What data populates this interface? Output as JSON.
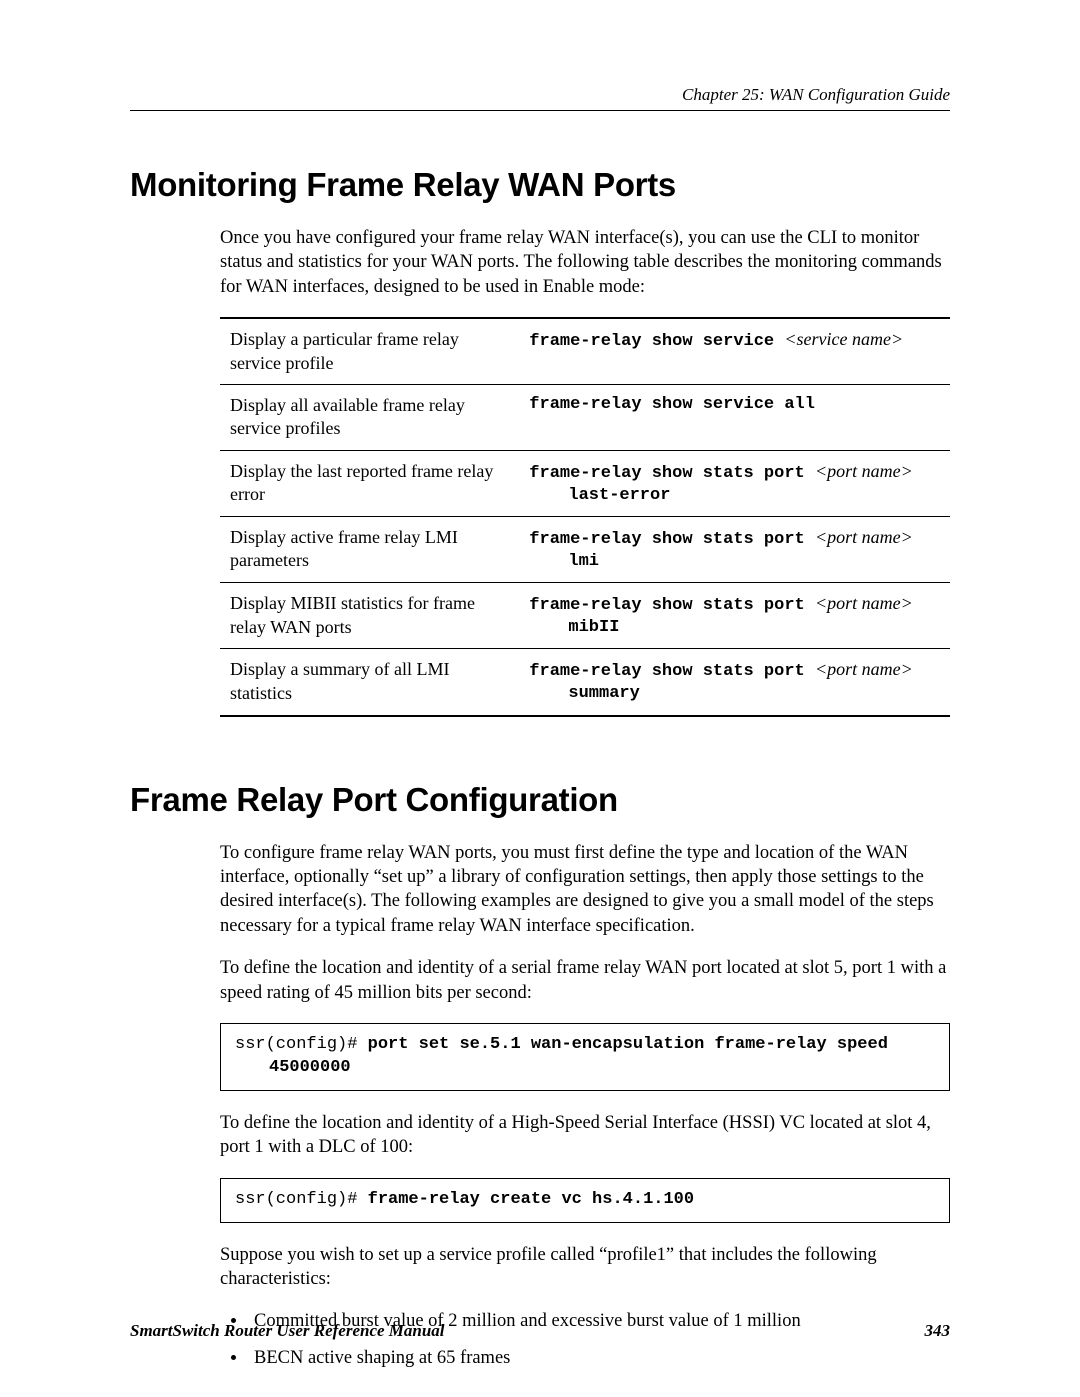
{
  "header": {
    "chapter_label": "Chapter 25: WAN Configuration Guide"
  },
  "section1": {
    "heading": "Monitoring Frame Relay WAN Ports",
    "intro": "Once you have configured your frame relay WAN interface(s), you can use the CLI to monitor status and statistics for your WAN ports. The following table describes the monitoring commands for WAN interfaces, designed to be used in Enable mode:",
    "table": {
      "rows": [
        {
          "desc": "Display a particular frame relay service profile",
          "cmd_prefix": "frame-relay show service ",
          "param": "<service name>",
          "line2": ""
        },
        {
          "desc": "Display all available frame relay service profiles",
          "cmd_prefix": "frame-relay show service all",
          "param": "",
          "line2": ""
        },
        {
          "desc": "Display the last reported frame relay error",
          "cmd_prefix": "frame-relay show stats port ",
          "param": "<port name>",
          "line2": "last-error"
        },
        {
          "desc": "Display active frame relay LMI parameters",
          "cmd_prefix": "frame-relay show stats port ",
          "param": "<port name>",
          "line2": "lmi"
        },
        {
          "desc": "Display MIBII statistics for frame relay WAN ports",
          "cmd_prefix": "frame-relay show stats port ",
          "param": "<port name>",
          "line2": "mibII"
        },
        {
          "desc": "Display a summary of all LMI statistics",
          "cmd_prefix": "frame-relay show stats port ",
          "param": "<port name>",
          "line2": "summary"
        }
      ]
    }
  },
  "section2": {
    "heading": "Frame Relay Port Configuration",
    "para1": "To configure frame relay WAN ports, you must first define the type and location of the WAN interface, optionally “set up” a library of configuration settings, then apply those settings to the desired interface(s). The following examples are designed to give you a small model of the steps necessary for a typical frame relay WAN interface specification.",
    "para2": "To define the location and identity of a serial frame relay WAN port located at slot 5, port 1 with a speed rating of 45 million bits per second:",
    "code1": {
      "prompt": "ssr(config)# ",
      "cmd_line1": "port set se.5.1 wan-encapsulation frame-relay speed",
      "cmd_line2": "45000000"
    },
    "para3": "To define the location and identity of a High-Speed Serial Interface (HSSI) VC located at slot 4, port 1 with a DLC of 100:",
    "code2": {
      "prompt": "ssr(config)# ",
      "cmd": "frame-relay create vc hs.4.1.100"
    },
    "para4": "Suppose you wish to set up a service profile called “profile1” that includes the following characteristics:",
    "bullets": [
      "Committed burst value of 2 million and excessive burst value of 1 million",
      "BECN active shaping at 65 frames"
    ]
  },
  "footer": {
    "manual": "SmartSwitch Router User Reference Manual",
    "page": "343"
  }
}
